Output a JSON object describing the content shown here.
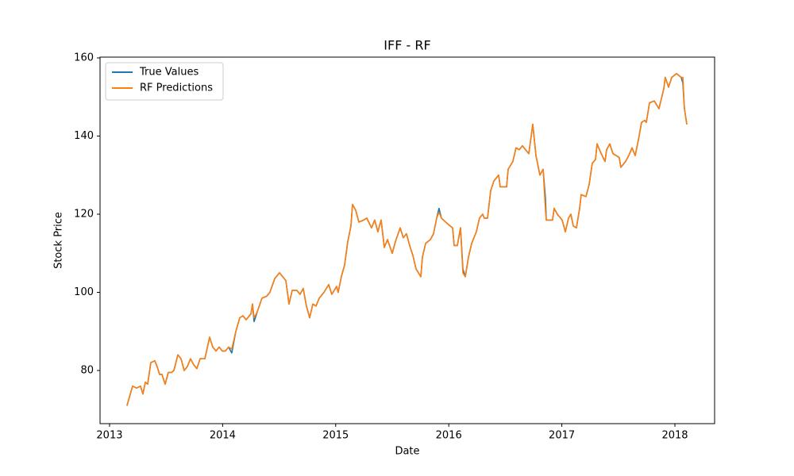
{
  "chart_data": {
    "type": "line",
    "title": "IFF - RF",
    "x_label": "Date",
    "y_label": "Stock Price",
    "x": [
      2013.154,
      2013.204,
      2013.239,
      2013.274,
      2013.295,
      2013.316,
      2013.337,
      2013.365,
      2013.4,
      2013.421,
      2013.442,
      2013.463,
      2013.492,
      2013.52,
      2013.548,
      2013.569,
      2013.604,
      2013.632,
      2013.66,
      2013.688,
      2013.716,
      2013.744,
      2013.772,
      2013.801,
      2013.843,
      2013.885,
      2013.913,
      2013.941,
      2013.969,
      2013.997,
      2014.025,
      2014.053,
      2014.081,
      2014.117,
      2014.152,
      2014.18,
      2014.208,
      2014.25,
      2014.264,
      2014.278,
      2014.306,
      2014.348,
      2014.39,
      2014.418,
      2014.461,
      2014.503,
      2014.531,
      2014.559,
      2014.587,
      2014.615,
      2014.657,
      2014.685,
      2014.713,
      2014.741,
      2014.77,
      2014.798,
      2014.826,
      2014.854,
      2014.896,
      2014.938,
      2014.966,
      2015.008,
      2015.022,
      2015.05,
      2015.079,
      2015.107,
      2015.135,
      2015.149,
      2015.177,
      2015.205,
      2015.247,
      2015.275,
      2015.317,
      2015.345,
      2015.373,
      2015.402,
      2015.43,
      2015.458,
      2015.5,
      2015.528,
      2015.57,
      2015.598,
      2015.626,
      2015.654,
      2015.682,
      2015.711,
      2015.753,
      2015.767,
      2015.795,
      2015.837,
      2015.865,
      2015.893,
      2015.914,
      2015.935,
      2015.991,
      2016.034,
      2016.048,
      2016.076,
      2016.104,
      2016.125,
      2016.146,
      2016.174,
      2016.202,
      2016.244,
      2016.272,
      2016.3,
      2016.314,
      2016.343,
      2016.371,
      2016.399,
      2016.441,
      2016.455,
      2016.483,
      2016.511,
      2016.525,
      2016.567,
      2016.595,
      2016.623,
      2016.651,
      2016.708,
      2016.743,
      2016.771,
      2016.806,
      2016.834,
      2016.855,
      2016.862,
      2016.918,
      2016.932,
      2016.96,
      2017.003,
      2017.031,
      2017.059,
      2017.08,
      2017.101,
      2017.129,
      2017.157,
      2017.171,
      2017.213,
      2017.241,
      2017.269,
      2017.298,
      2017.312,
      2017.34,
      2017.382,
      2017.396,
      2017.424,
      2017.452,
      2017.48,
      2017.508,
      2017.522,
      2017.564,
      2017.592,
      2017.621,
      2017.649,
      2017.677,
      2017.705,
      2017.733,
      2017.747,
      2017.775,
      2017.817,
      2017.859,
      2017.901,
      2017.915,
      2017.944,
      2017.972,
      2018.014,
      2018.056,
      2018.07,
      2018.084,
      2018.105
    ],
    "series": [
      {
        "name": "True Values",
        "color": "#1f77b4",
        "values": [
          71,
          76,
          75.5,
          76,
          74,
          77,
          76.5,
          82,
          82.5,
          81,
          79,
          79,
          76.5,
          79.5,
          79.5,
          80,
          84,
          83,
          80,
          81,
          83,
          81.5,
          80.5,
          83,
          83,
          88.5,
          86,
          85,
          86,
          85,
          85,
          86,
          84.5,
          90,
          93.5,
          94,
          93,
          94.5,
          97,
          92.5,
          95,
          98.5,
          99,
          100,
          103.5,
          105,
          104,
          103,
          97,
          100.5,
          100.5,
          99.5,
          101,
          96.5,
          93.5,
          97,
          96.5,
          98.5,
          100,
          102,
          99.5,
          101.5,
          100,
          104,
          107,
          113,
          117,
          122.5,
          121,
          118,
          118.5,
          119,
          116.5,
          118.5,
          115.5,
          118.5,
          111.5,
          113.5,
          110,
          113,
          116.5,
          114,
          115,
          112,
          109.5,
          106,
          104,
          109,
          112.5,
          113.5,
          115,
          119,
          121.5,
          119,
          117.5,
          116.5,
          112,
          112,
          116.5,
          106,
          104,
          109,
          112.5,
          115.5,
          119,
          120,
          119,
          119,
          126,
          128.5,
          130,
          127,
          127,
          127,
          131.5,
          133.5,
          137,
          136.5,
          137.5,
          135.5,
          143,
          135,
          130,
          131.5,
          124,
          118.5,
          118.5,
          121.5,
          120,
          118.5,
          115.5,
          119,
          120,
          117,
          116.5,
          121.5,
          125,
          124.5,
          127.5,
          133,
          134,
          138,
          136,
          133.5,
          136.5,
          138,
          135.5,
          135,
          134.5,
          132,
          133.5,
          135,
          137,
          135,
          139,
          143.5,
          144,
          143.5,
          148.5,
          149,
          147,
          152,
          155,
          152.5,
          155,
          156,
          155,
          153.5,
          147,
          143
        ]
      },
      {
        "name": "RF Predictions",
        "color": "#ff7f0e",
        "values": [
          71,
          76,
          75.5,
          76,
          74,
          77,
          76.5,
          82,
          82.5,
          81,
          79,
          79,
          76.5,
          79.5,
          79.5,
          80,
          84,
          83,
          80,
          81,
          83,
          81.5,
          80.5,
          83,
          83,
          88.5,
          86,
          85,
          86,
          85,
          85,
          86,
          85.5,
          90,
          93.5,
          94,
          93,
          94.5,
          97,
          93.5,
          95,
          98.5,
          99,
          100,
          103.5,
          105,
          104,
          103,
          97,
          100.5,
          100.5,
          99.5,
          101,
          96.5,
          93.5,
          97,
          96.5,
          98.5,
          100,
          102,
          99.5,
          101.5,
          100,
          104,
          107,
          113,
          117,
          122.5,
          121,
          118,
          118.5,
          119,
          116.5,
          118.5,
          115.5,
          118.5,
          111.5,
          113.5,
          110,
          113,
          116.5,
          114,
          115,
          112,
          109.5,
          106,
          104,
          109,
          112.5,
          113.5,
          115,
          119,
          120.5,
          119,
          117.5,
          116.5,
          112,
          112,
          116.5,
          105,
          104,
          109,
          112.5,
          115.5,
          119,
          120,
          119,
          119,
          126,
          128.5,
          130,
          127,
          127,
          127,
          131.5,
          133.5,
          137,
          136.5,
          137.5,
          135.5,
          143,
          135,
          130,
          131.5,
          121,
          118.5,
          118.5,
          121.5,
          120,
          118.5,
          115.5,
          119,
          120,
          117,
          116.5,
          121.5,
          125,
          124.5,
          127.5,
          133,
          134,
          138,
          136,
          133.5,
          136.5,
          138,
          135.5,
          135,
          134.5,
          132,
          133.5,
          135,
          137,
          135,
          139,
          143.5,
          144,
          143.5,
          148.5,
          149,
          147,
          152,
          155,
          152.5,
          155,
          156,
          155,
          155,
          147,
          143
        ]
      }
    ],
    "xlim": [
      2012.916,
      2018.351
    ],
    "xticks": [
      2013,
      2014,
      2015,
      2016,
      2017,
      2018
    ],
    "ylim": [
      66.4,
      160.2
    ],
    "yticks": [
      80,
      100,
      120,
      140,
      160
    ],
    "legend": "upper left"
  }
}
